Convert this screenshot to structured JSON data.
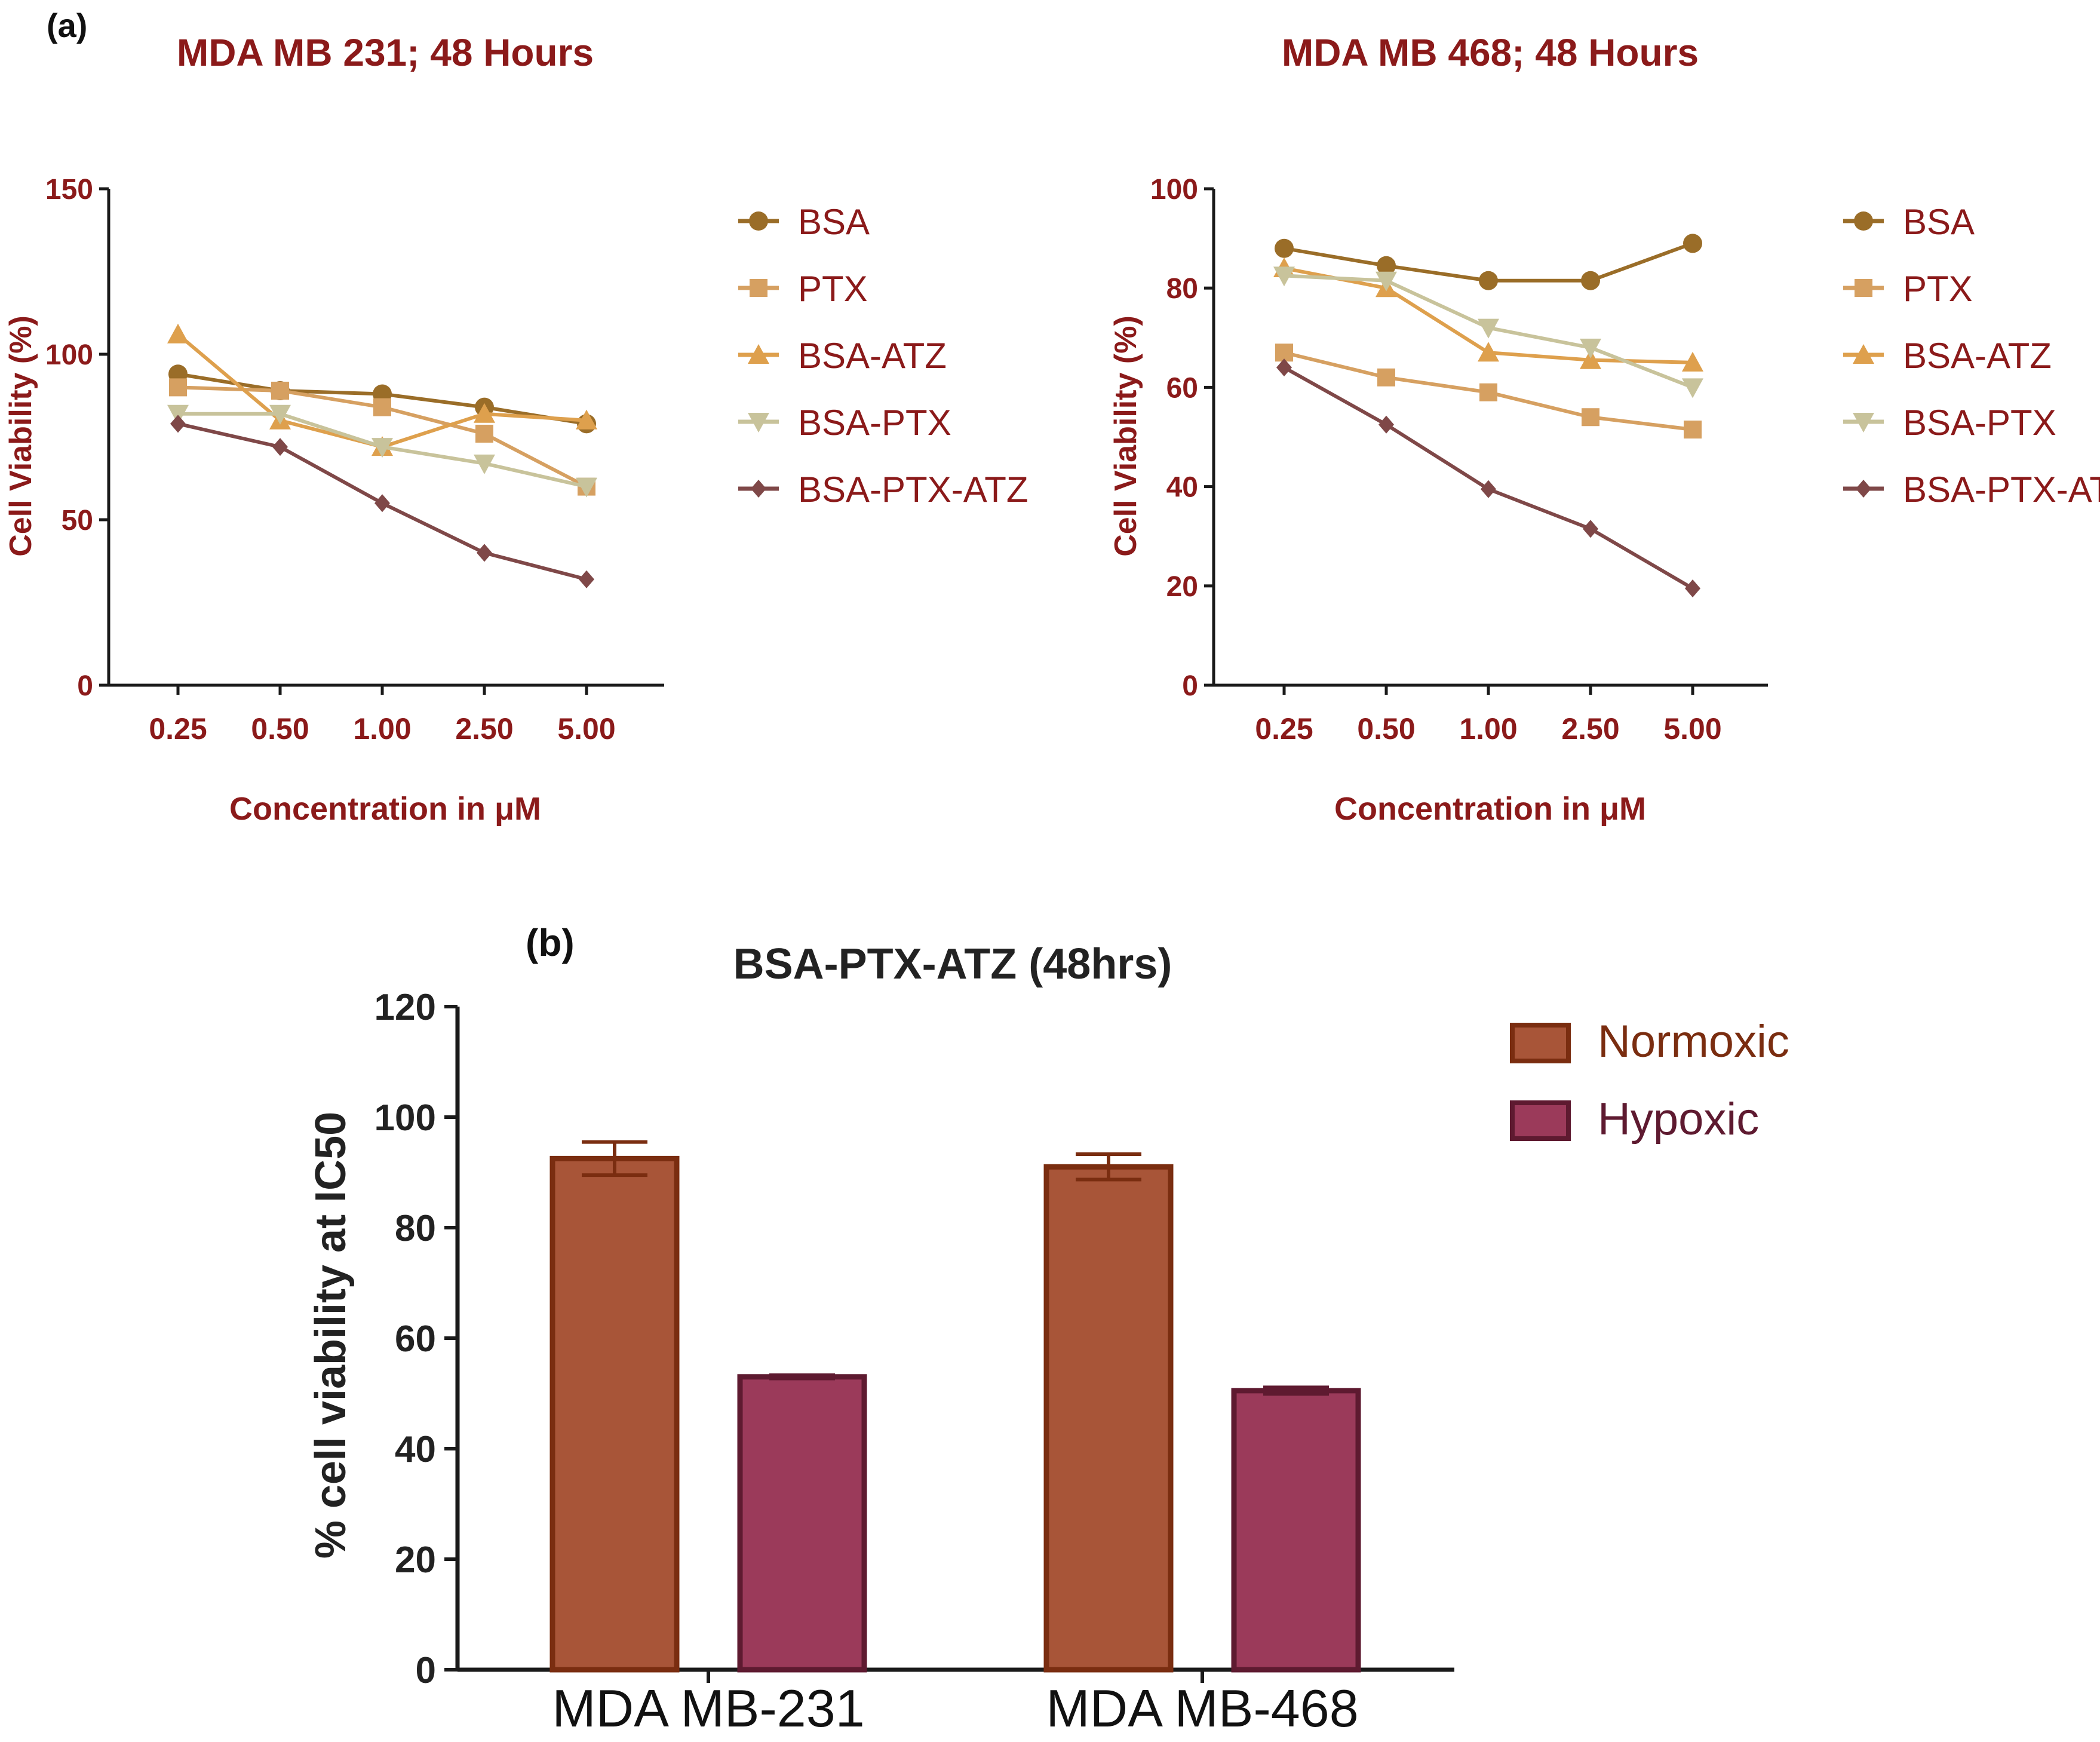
{
  "panel_a_label": "(a)",
  "panel_b_label": "(b)",
  "colors": {
    "BSA": "#9a6d28",
    "PTX": "#d6a061",
    "BSA-ATZ": "#dea04d",
    "BSA-PTX": "#c8c39b",
    "BSA-PTX-ATZ": "#7f4848",
    "label_red": "#8b1a1a",
    "Normoxic": "#a85538",
    "Normoxic_edge": "#7a2d10",
    "Hypoxic": "#9b3a5a",
    "Hypoxic_edge": "#5e1a30",
    "axis": "#1a1a1a"
  },
  "chart_data": [
    {
      "id": "mb231",
      "type": "line",
      "title": "MDA MB 231; 48 Hours",
      "xlabel": "Concentration in μM",
      "ylabel": "Cell Viability (%)",
      "categories": [
        "0.25",
        "0.50",
        "1.00",
        "2.50",
        "5.00"
      ],
      "ylim": [
        0,
        150
      ],
      "yticks": [
        0,
        50,
        100,
        150
      ],
      "series": [
        {
          "name": "BSA",
          "marker": "circle",
          "values": [
            94,
            89,
            88,
            84,
            79
          ]
        },
        {
          "name": "PTX",
          "marker": "square",
          "values": [
            90,
            89,
            84,
            76,
            60
          ]
        },
        {
          "name": "BSA-ATZ",
          "marker": "triangle-up",
          "values": [
            106,
            80,
            72,
            82,
            80
          ]
        },
        {
          "name": "BSA-PTX",
          "marker": "triangle-down",
          "values": [
            82,
            82,
            72,
            67,
            60
          ]
        },
        {
          "name": "BSA-PTX-ATZ",
          "marker": "diamond",
          "values": [
            79,
            72,
            55,
            40,
            32
          ]
        }
      ]
    },
    {
      "id": "mb468",
      "type": "line",
      "title": "MDA MB 468; 48 Hours",
      "xlabel": "Concentration in μM",
      "ylabel": "Cell Viability (%)",
      "categories": [
        "0.25",
        "0.50",
        "1.00",
        "2.50",
        "5.00"
      ],
      "ylim": [
        0,
        100
      ],
      "yticks": [
        0,
        20,
        40,
        60,
        80,
        100
      ],
      "series": [
        {
          "name": "BSA",
          "marker": "circle",
          "values": [
            88,
            84.5,
            81.5,
            81.5,
            89
          ]
        },
        {
          "name": "PTX",
          "marker": "square",
          "values": [
            67,
            62,
            59,
            54,
            51.5
          ]
        },
        {
          "name": "BSA-ATZ",
          "marker": "triangle-up",
          "values": [
            84,
            80,
            67,
            65.5,
            65
          ]
        },
        {
          "name": "BSA-PTX",
          "marker": "triangle-down",
          "values": [
            82.5,
            81.5,
            72,
            68,
            60
          ]
        },
        {
          "name": "BSA-PTX-ATZ",
          "marker": "diamond",
          "values": [
            64,
            52.5,
            39.5,
            31.5,
            19.5
          ]
        }
      ]
    },
    {
      "id": "ic50",
      "type": "bar",
      "title": "BSA-PTX-ATZ (48hrs)",
      "xlabel": "",
      "ylabel": "% cell viability at IC50",
      "categories": [
        "MDA MB-231",
        "MDA MB-468"
      ],
      "ylim": [
        0,
        120
      ],
      "yticks": [
        0,
        20,
        40,
        60,
        80,
        100,
        120
      ],
      "series": [
        {
          "name": "Normoxic",
          "values": [
            92.5,
            91
          ],
          "errors": [
            3,
            2.3
          ]
        },
        {
          "name": "Hypoxic",
          "values": [
            53,
            50.5
          ],
          "errors": [
            0.3,
            0.6
          ]
        }
      ]
    }
  ]
}
